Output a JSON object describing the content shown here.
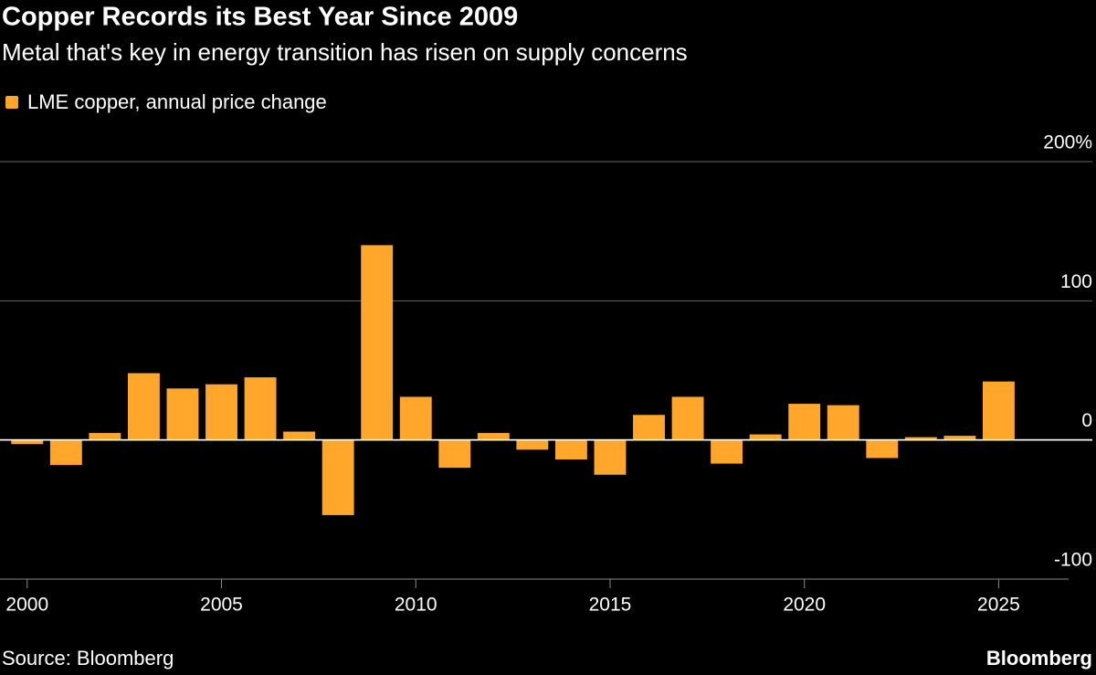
{
  "chart_data": {
    "type": "bar",
    "title": "Copper Records its Best Year Since 2009",
    "subtitle": "Metal that's key in energy transition has risen on supply concerns",
    "source": "Source: Bloomberg",
    "brand": "Bloomberg",
    "x": [
      2000,
      2001,
      2002,
      2003,
      2004,
      2005,
      2006,
      2007,
      2008,
      2009,
      2010,
      2011,
      2012,
      2013,
      2014,
      2015,
      2016,
      2017,
      2018,
      2019,
      2020,
      2021,
      2022,
      2023,
      2024,
      2025
    ],
    "series": [
      {
        "name": "LME copper, annual price change",
        "color": "#ffa62b",
        "values": [
          -3,
          -18,
          5,
          48,
          37,
          40,
          45,
          6,
          -54,
          140,
          31,
          -20,
          5,
          -7,
          -14,
          -25,
          18,
          31,
          -17,
          4,
          26,
          25,
          -13,
          2,
          3,
          42
        ]
      }
    ],
    "xlim": [
      1999.3,
      2026.8
    ],
    "xticks": [
      2000,
      2005,
      2010,
      2015,
      2020,
      2025
    ],
    "ylim": [
      -100,
      200
    ],
    "yticks": [
      {
        "value": 200,
        "label": "200%"
      },
      100,
      0,
      -100
    ],
    "grid": true,
    "legend": "top-left"
  }
}
